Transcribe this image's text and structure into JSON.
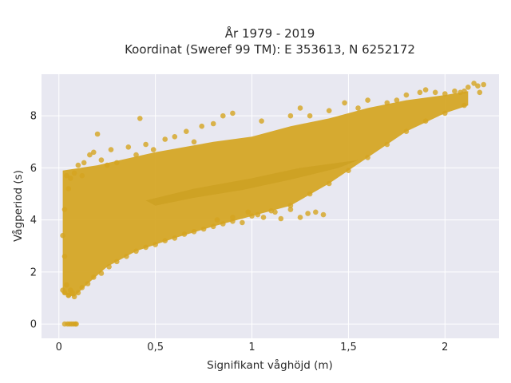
{
  "chart_data": {
    "type": "scatter",
    "title_lines": [
      "År 1979 - 2019",
      "Koordinat (Sweref 99 TM): E 353613, N 6252172"
    ],
    "xlabel": "Signifikant våghöjd (m)",
    "ylabel": "Vågperiod (s)",
    "xlim": [
      -0.09,
      2.28
    ],
    "ylim": [
      -0.55,
      9.6
    ],
    "x_ticks": [
      0,
      0.5,
      1,
      1.5,
      2
    ],
    "x_tick_labels": [
      "0",
      "0,5",
      "1",
      "1,5",
      "2"
    ],
    "y_ticks": [
      0,
      2,
      4,
      6,
      8
    ],
    "y_tick_labels": [
      "0",
      "2",
      "4",
      "6",
      "8"
    ],
    "grid": true,
    "legend": "none",
    "colors": {
      "marker": "#d4a420",
      "plot_bg": "#e8e8f1",
      "grid": "#ffffff"
    },
    "points": [
      [
        0.03,
        0
      ],
      [
        0.045,
        0
      ],
      [
        0.055,
        0
      ],
      [
        0.065,
        0
      ],
      [
        0.075,
        0
      ],
      [
        0.085,
        0
      ],
      [
        0.09,
        0
      ],
      [
        0.02,
        1.3
      ],
      [
        0.03,
        1.2
      ],
      [
        0.04,
        1.5
      ],
      [
        0.05,
        1.1
      ],
      [
        0.06,
        1.3
      ],
      [
        0.07,
        1.2
      ],
      [
        0.03,
        2.6
      ],
      [
        0.02,
        3.4
      ],
      [
        0.03,
        4.4
      ],
      [
        0.04,
        5.7
      ],
      [
        0.05,
        5.2
      ],
      [
        0.06,
        5.6
      ],
      [
        0.08,
        5.8
      ],
      [
        0.1,
        6.1
      ],
      [
        0.12,
        5.7
      ],
      [
        0.13,
        6.2
      ],
      [
        0.16,
        6.5
      ],
      [
        0.18,
        6.6
      ],
      [
        0.22,
        6.3
      ],
      [
        0.25,
        6.1
      ],
      [
        0.27,
        6.7
      ],
      [
        0.3,
        6.2
      ],
      [
        0.36,
        6.8
      ],
      [
        0.4,
        6.5
      ],
      [
        0.45,
        6.9
      ],
      [
        0.49,
        6.7
      ],
      [
        0.55,
        7.1
      ],
      [
        0.6,
        7.2
      ],
      [
        0.66,
        7.4
      ],
      [
        0.7,
        7.0
      ],
      [
        0.74,
        7.6
      ],
      [
        0.8,
        7.7
      ],
      [
        0.85,
        8.0
      ],
      [
        0.9,
        8.1
      ],
      [
        1.05,
        7.8
      ],
      [
        1.2,
        8.0
      ],
      [
        1.25,
        8.3
      ],
      [
        1.3,
        8.0
      ],
      [
        1.4,
        8.2
      ],
      [
        1.48,
        8.5
      ],
      [
        1.55,
        8.3
      ],
      [
        1.6,
        8.6
      ],
      [
        1.7,
        8.5
      ],
      [
        1.75,
        8.6
      ],
      [
        1.8,
        8.8
      ],
      [
        1.87,
        8.9
      ],
      [
        1.9,
        9.0
      ],
      [
        1.95,
        8.9
      ],
      [
        2.0,
        8.85
      ],
      [
        2.05,
        8.95
      ],
      [
        2.08,
        8.9
      ],
      [
        2.1,
        8.95
      ],
      [
        2.12,
        9.1
      ],
      [
        2.15,
        9.25
      ],
      [
        2.17,
        9.15
      ],
      [
        2.2,
        9.2
      ],
      [
        2.18,
        8.9
      ],
      [
        0.42,
        7.9
      ],
      [
        0.2,
        7.3
      ],
      [
        0.98,
        4.3
      ],
      [
        1.03,
        4.2
      ],
      [
        1.06,
        4.1
      ],
      [
        1.12,
        4.3
      ],
      [
        1.15,
        4.05
      ],
      [
        1.2,
        4.4
      ],
      [
        1.25,
        4.1
      ],
      [
        1.29,
        4.25
      ],
      [
        1.33,
        4.3
      ],
      [
        1.37,
        4.2
      ],
      [
        0.82,
        4.0
      ],
      [
        0.9,
        4.1
      ],
      [
        0.95,
        3.9
      ],
      [
        0.05,
        1.1
      ],
      [
        0.08,
        1.05
      ],
      [
        0.1,
        1.2
      ],
      [
        0.12,
        1.4
      ],
      [
        0.15,
        1.55
      ],
      [
        0.18,
        1.8
      ],
      [
        0.22,
        1.95
      ],
      [
        0.26,
        2.2
      ],
      [
        0.3,
        2.4
      ],
      [
        0.35,
        2.6
      ],
      [
        0.4,
        2.8
      ],
      [
        0.45,
        2.95
      ],
      [
        0.5,
        3.05
      ],
      [
        0.55,
        3.2
      ],
      [
        0.6,
        3.3
      ],
      [
        0.65,
        3.45
      ],
      [
        0.7,
        3.55
      ],
      [
        0.75,
        3.65
      ],
      [
        0.8,
        3.75
      ],
      [
        0.85,
        3.85
      ],
      [
        0.9,
        3.95
      ],
      [
        1.0,
        4.15
      ],
      [
        1.1,
        4.35
      ],
      [
        1.2,
        4.55
      ],
      [
        1.3,
        5.0
      ],
      [
        1.4,
        5.4
      ],
      [
        1.5,
        5.9
      ],
      [
        1.6,
        6.4
      ],
      [
        1.7,
        6.9
      ],
      [
        1.8,
        7.4
      ],
      [
        1.9,
        7.8
      ],
      [
        2.0,
        8.1
      ],
      [
        2.1,
        8.4
      ]
    ]
  }
}
